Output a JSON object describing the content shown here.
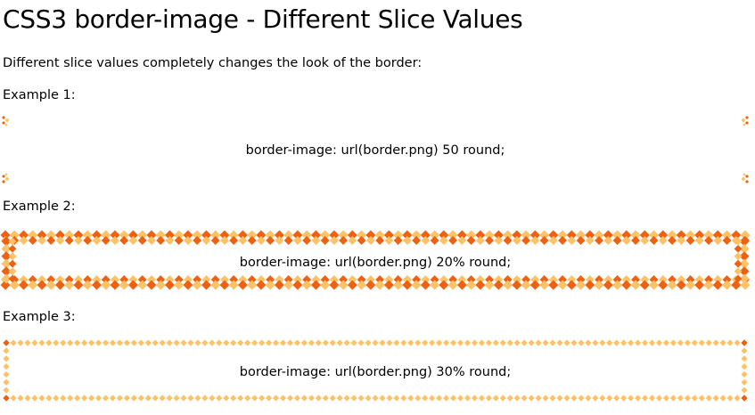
{
  "page": {
    "title": "CSS3 border-image - Different Slice Values",
    "intro": "Different slice values completely changes the look of the border:"
  },
  "colors": {
    "dark": "#ee6113",
    "light": "#fdc266"
  },
  "examples": [
    {
      "label": "Example 1:",
      "text": "border-image: url(border.png) 50 round;"
    },
    {
      "label": "Example 2:",
      "text": "border-image: url(border.png) 20% round;"
    },
    {
      "label": "Example 3:",
      "text": "border-image: url(border.png) 30% round;"
    }
  ]
}
